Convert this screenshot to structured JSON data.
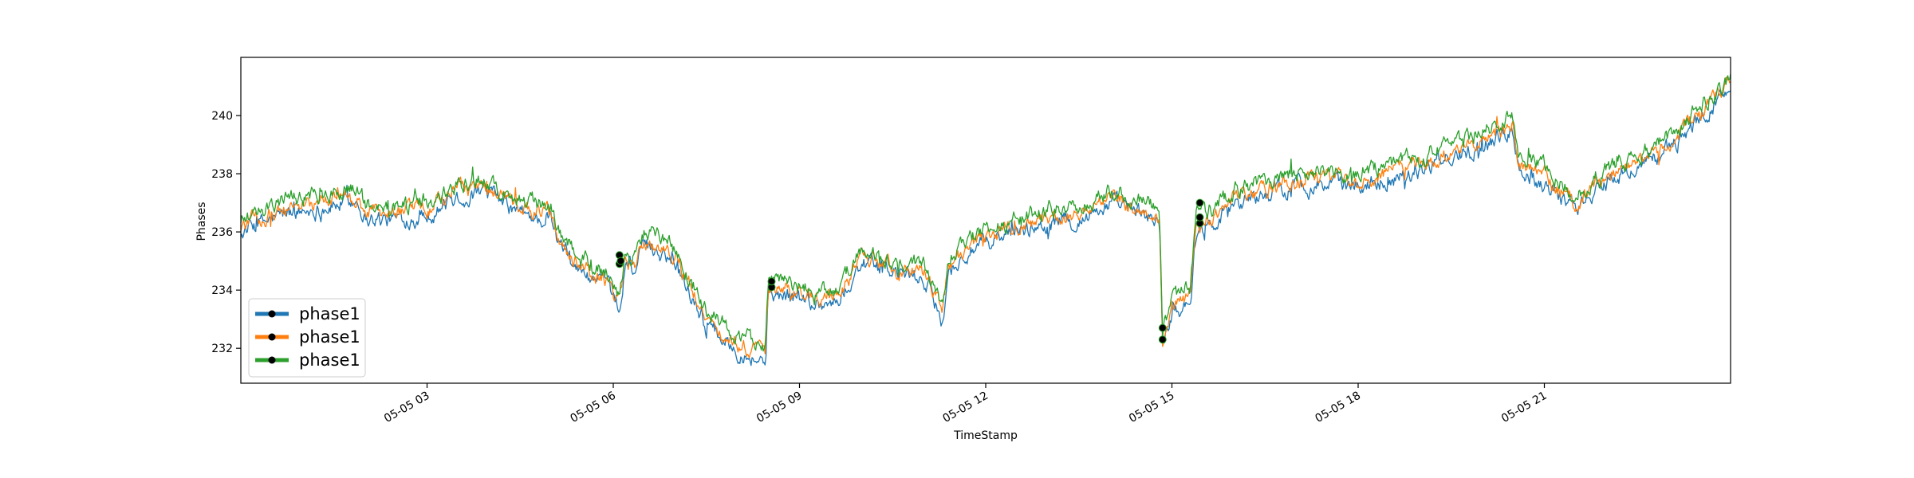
{
  "chart_data": {
    "type": "line",
    "title": "",
    "xlabel": "TimeStamp",
    "ylabel": "Phases",
    "xlim": [
      "05-05 00:00",
      "05-06 00:00"
    ],
    "ylim": [
      230.8,
      242.0
    ],
    "grid": false,
    "legend_position": "lower-left",
    "x_ticks": [
      {
        "label": "05-05 03",
        "hour": 3
      },
      {
        "label": "05-05 06",
        "hour": 6
      },
      {
        "label": "05-05 09",
        "hour": 9
      },
      {
        "label": "05-05 12",
        "hour": 12
      },
      {
        "label": "05-05 15",
        "hour": 15
      },
      {
        "label": "05-05 18",
        "hour": 18
      },
      {
        "label": "05-05 21",
        "hour": 21
      }
    ],
    "y_ticks": [
      {
        "label": "232",
        "value": 232
      },
      {
        "label": "234",
        "value": 234
      },
      {
        "label": "236",
        "value": 236
      },
      {
        "label": "238",
        "value": 238
      },
      {
        "label": "240",
        "value": 240
      }
    ],
    "x_hours": [
      0,
      0.7,
      1.0,
      1.9,
      2.0,
      2.4,
      3.0,
      3.5,
      4.0,
      4.5,
      5.0,
      5.1,
      5.5,
      5.9,
      6.1,
      6.2,
      6.35,
      6.5,
      6.8,
      7.0,
      7.5,
      8.0,
      8.45,
      8.5,
      9.0,
      9.5,
      9.7,
      10.0,
      10.5,
      11.0,
      11.3,
      11.4,
      11.8,
      12.5,
      13.0,
      13.5,
      14.0,
      14.6,
      14.8,
      14.85,
      15.0,
      15.3,
      15.4,
      15.45,
      16.0,
      17.0,
      18.0,
      19.0,
      20.0,
      20.5,
      20.6,
      21.0,
      21.5,
      22.0,
      23.0,
      24.0
    ],
    "series": [
      {
        "name": "phase1",
        "color": "#1f77b4",
        "amp": 0.22,
        "offset": -0.2,
        "y": [
          236.2,
          236.8,
          236.9,
          237.3,
          236.7,
          236.6,
          236.8,
          237.4,
          237.5,
          236.8,
          236.6,
          235.8,
          234.8,
          234.3,
          233.4,
          235.2,
          234.9,
          235.7,
          235.5,
          235.2,
          233.0,
          232.2,
          231.7,
          234.1,
          233.9,
          233.7,
          234.0,
          235.2,
          234.8,
          234.6,
          233.2,
          234.8,
          235.6,
          236.2,
          236.5,
          236.6,
          237.2,
          236.7,
          236.6,
          232.3,
          233.4,
          233.9,
          236.4,
          236.2,
          237.2,
          237.8,
          237.8,
          238.3,
          239.2,
          239.7,
          238.3,
          237.9,
          237.0,
          237.9,
          239.0,
          241.1
        ]
      },
      {
        "name": "phase1",
        "color": "#ff7f0e",
        "amp": 0.2,
        "offset": 0.0,
        "y": [
          236.2,
          236.8,
          236.9,
          237.3,
          236.7,
          236.6,
          236.8,
          237.4,
          237.5,
          236.8,
          236.6,
          235.8,
          234.8,
          234.3,
          233.4,
          235.2,
          234.9,
          235.7,
          235.5,
          235.2,
          233.0,
          232.2,
          231.7,
          234.1,
          233.9,
          233.7,
          234.0,
          235.2,
          234.8,
          234.6,
          233.2,
          234.8,
          235.6,
          236.2,
          236.5,
          236.6,
          237.2,
          236.7,
          236.6,
          232.3,
          233.4,
          233.9,
          236.4,
          236.2,
          237.2,
          237.8,
          237.8,
          238.3,
          239.2,
          239.7,
          238.3,
          237.9,
          237.0,
          237.9,
          239.0,
          241.1
        ]
      },
      {
        "name": "phase1",
        "color": "#2ca02c",
        "amp": 0.22,
        "offset": 0.25,
        "y": [
          236.2,
          236.8,
          236.9,
          237.3,
          236.7,
          236.6,
          236.8,
          237.4,
          237.5,
          236.8,
          236.6,
          235.8,
          234.8,
          234.3,
          233.4,
          235.2,
          234.9,
          235.7,
          235.5,
          235.2,
          233.0,
          232.2,
          231.7,
          234.1,
          233.9,
          233.7,
          234.0,
          235.2,
          234.8,
          234.6,
          233.2,
          234.8,
          235.6,
          236.2,
          236.5,
          236.6,
          237.2,
          236.7,
          236.6,
          232.3,
          233.4,
          233.9,
          236.4,
          236.2,
          237.2,
          237.8,
          237.8,
          238.3,
          239.2,
          239.7,
          238.3,
          237.9,
          237.0,
          237.9,
          239.0,
          241.1
        ]
      }
    ],
    "markers": [
      {
        "hour": 6.1,
        "value": 234.9
      },
      {
        "hour": 6.1,
        "value": 235.2
      },
      {
        "hour": 6.12,
        "value": 235.0
      },
      {
        "hour": 8.55,
        "value": 234.1
      },
      {
        "hour": 8.55,
        "value": 234.3
      },
      {
        "hour": 14.85,
        "value": 232.3
      },
      {
        "hour": 14.85,
        "value": 232.7
      },
      {
        "hour": 15.45,
        "value": 236.3
      },
      {
        "hour": 15.45,
        "value": 236.5
      },
      {
        "hour": 15.45,
        "value": 237.0
      }
    ],
    "legend": [
      {
        "label": "phase1",
        "color": "#1f77b4"
      },
      {
        "label": "phase1",
        "color": "#ff7f0e"
      },
      {
        "label": "phase1",
        "color": "#2ca02c"
      }
    ]
  }
}
